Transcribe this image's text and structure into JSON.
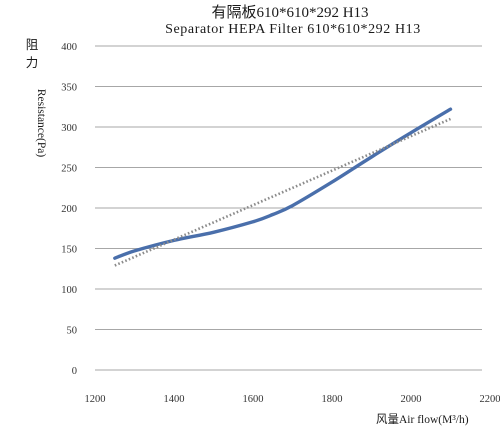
{
  "chart_data": {
    "type": "line",
    "title": "有隔板610*610*292 H13",
    "subtitle": "Separator HEPA Filter 610*610*292 H13",
    "xlabel": "风量Air flow(M³/h)",
    "ylabel_cn": [
      "阻",
      "力"
    ],
    "ylabel": "Resistance(Pa)",
    "xlim": [
      1200,
      2200
    ],
    "ylim": [
      0,
      400
    ],
    "xticks": [
      "1200",
      "1400",
      "1600",
      "1800",
      "2000",
      "2200"
    ],
    "yticks": [
      "0",
      "50",
      "100",
      "150",
      "200",
      "250",
      "300",
      "350",
      "400"
    ],
    "grid": "horizontal",
    "series": [
      {
        "role": "measured",
        "style": "solid",
        "color": "#4a6fab",
        "x": [
          1250,
          1300,
          1400,
          1500,
          1600,
          1650,
          1700,
          1800,
          1900,
          2000,
          2100
        ],
        "y": [
          138,
          147,
          160,
          170,
          183,
          192,
          203,
          232,
          263,
          293,
          322
        ]
      },
      {
        "role": "trend",
        "style": "dotted",
        "color": "#8c8c8c",
        "x": [
          1250,
          2100
        ],
        "y": [
          129,
          310
        ]
      }
    ]
  }
}
